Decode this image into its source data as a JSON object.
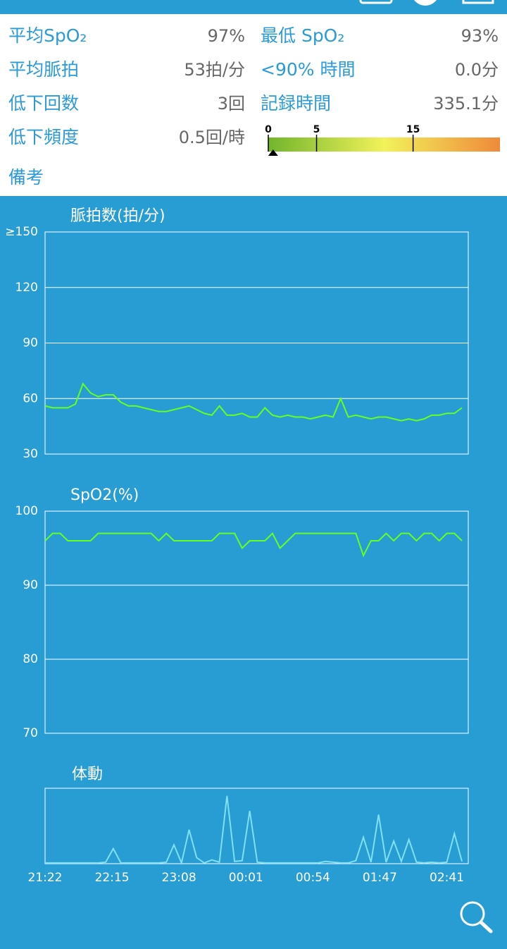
{
  "summary": {
    "items": [
      {
        "label": "平均SpO₂",
        "value": "97%"
      },
      {
        "label": "最低 SpO₂",
        "value": "93%"
      },
      {
        "label": "平均脈拍",
        "value": "53拍/分"
      },
      {
        "label": "<90% 時間",
        "value": "0.0分"
      },
      {
        "label": "低下回数",
        "value": "3回"
      },
      {
        "label": "記録時間",
        "value": "335.1分"
      },
      {
        "label": "低下頻度",
        "value": "0.5回/時"
      }
    ],
    "scale": {
      "ticks": [
        0,
        5,
        15
      ],
      "lim": [
        0,
        24
      ],
      "marker": 0.5
    },
    "note_label": "備考"
  },
  "chart_data": [
    {
      "type": "line",
      "title": "脈拍数(拍/分)",
      "color": "#66ff22",
      "xlim": [
        0,
        335
      ],
      "ylim": [
        30,
        150
      ],
      "yticks": [
        30,
        60,
        90,
        120,
        {
          "value": 150,
          "label": "≥150"
        }
      ],
      "grid": true,
      "x": [
        0,
        6,
        12,
        18,
        24,
        30,
        36,
        42,
        48,
        54,
        60,
        66,
        72,
        78,
        84,
        90,
        96,
        102,
        108,
        114,
        120,
        126,
        132,
        138,
        144,
        150,
        156,
        162,
        168,
        174,
        180,
        186,
        192,
        198,
        204,
        210,
        216,
        222,
        228,
        234,
        240,
        246,
        252,
        258,
        264,
        270,
        276,
        282,
        288,
        294,
        300,
        306,
        312,
        318,
        324,
        330
      ],
      "values": [
        56,
        55,
        55,
        55,
        57,
        68,
        63,
        61,
        62,
        62,
        58,
        56,
        56,
        55,
        54,
        53,
        53,
        54,
        55,
        56,
        54,
        52,
        51,
        56,
        51,
        51,
        52,
        50,
        50,
        55,
        51,
        50,
        51,
        50,
        50,
        49,
        50,
        51,
        50,
        60,
        50,
        51,
        50,
        49,
        50,
        50,
        49,
        48,
        49,
        48,
        49,
        51,
        51,
        52,
        52,
        55
      ]
    },
    {
      "type": "line",
      "title": "SpO2(%)",
      "color": "#66ff22",
      "xlim": [
        0,
        335
      ],
      "ylim": [
        70,
        100
      ],
      "yticks": [
        70,
        80,
        90,
        100
      ],
      "grid": true,
      "x": [
        0,
        6,
        12,
        18,
        24,
        30,
        36,
        42,
        48,
        54,
        60,
        66,
        72,
        78,
        84,
        90,
        96,
        102,
        108,
        114,
        120,
        126,
        132,
        138,
        144,
        150,
        156,
        162,
        168,
        174,
        180,
        186,
        192,
        198,
        204,
        210,
        216,
        222,
        228,
        234,
        240,
        246,
        252,
        258,
        264,
        270,
        276,
        282,
        288,
        294,
        300,
        306,
        312,
        318,
        324,
        330
      ],
      "values": [
        96,
        97,
        97,
        96,
        96,
        96,
        96,
        97,
        97,
        97,
        97,
        97,
        97,
        97,
        97,
        96,
        97,
        96,
        96,
        96,
        96,
        96,
        96,
        97,
        97,
        97,
        95,
        96,
        96,
        96,
        97,
        95,
        96,
        97,
        97,
        97,
        97,
        97,
        97,
        97,
        97,
        97,
        94,
        96,
        96,
        97,
        96,
        97,
        97,
        96,
        97,
        97,
        96,
        97,
        97,
        96
      ]
    },
    {
      "type": "line",
      "title": "体動",
      "color": "#7fe0f0",
      "xlim": [
        0,
        335
      ],
      "ylim": [
        0,
        100
      ],
      "xticks": [
        {
          "value": 0,
          "label": "21:22"
        },
        {
          "value": 53,
          "label": "22:15"
        },
        {
          "value": 106,
          "label": "23:08"
        },
        {
          "value": 159,
          "label": "00:01"
        },
        {
          "value": 212,
          "label": "00:54"
        },
        {
          "value": 265,
          "label": "01:47"
        },
        {
          "value": 318,
          "label": "02:41"
        }
      ],
      "x": [
        0,
        6,
        12,
        18,
        24,
        30,
        36,
        42,
        48,
        54,
        60,
        66,
        72,
        78,
        84,
        90,
        96,
        102,
        108,
        114,
        120,
        126,
        132,
        138,
        144,
        150,
        156,
        162,
        168,
        174,
        180,
        186,
        192,
        198,
        204,
        210,
        216,
        222,
        228,
        234,
        240,
        246,
        252,
        258,
        264,
        270,
        276,
        282,
        288,
        294,
        300,
        306,
        312,
        318,
        324,
        330
      ],
      "values": [
        1,
        1,
        1,
        1,
        1,
        1,
        1,
        1,
        2,
        20,
        1,
        1,
        1,
        1,
        1,
        1,
        2,
        25,
        1,
        45,
        8,
        1,
        5,
        2,
        90,
        3,
        4,
        70,
        2,
        1,
        1,
        1,
        1,
        1,
        1,
        1,
        1,
        3,
        2,
        1,
        1,
        4,
        35,
        2,
        65,
        2,
        30,
        3,
        32,
        2,
        1,
        2,
        1,
        2,
        40,
        3
      ]
    }
  ]
}
